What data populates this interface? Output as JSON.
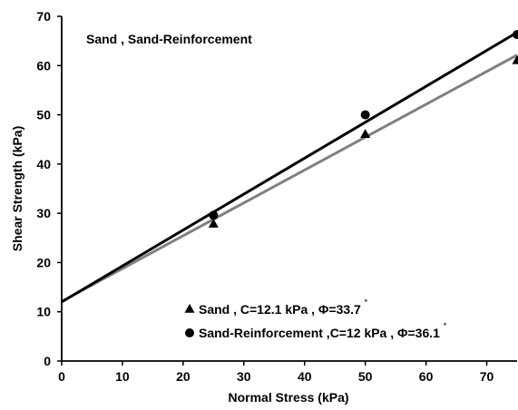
{
  "chart_data": {
    "type": "scatter",
    "title": "",
    "annotation": "Sand , Sand-Reinforcement",
    "xlabel": "Normal  Stress (kPa)",
    "ylabel": "Shear Strength (kPa)",
    "xlim": [
      0,
      75
    ],
    "ylim": [
      0,
      70
    ],
    "x_ticks": [
      0,
      10,
      20,
      30,
      40,
      50,
      60,
      70
    ],
    "y_ticks": [
      0,
      10,
      20,
      30,
      40,
      50,
      60,
      70
    ],
    "grid": false,
    "legend_position": "bottom-center",
    "series": [
      {
        "legend_label": "Sand , C=12.1 kPa , Φ=33.7",
        "degree_mark": "˚",
        "marker": "triangle",
        "marker_color": "#000000",
        "line_color": "#808080",
        "points": [
          {
            "x": 25,
            "y": 27.8
          },
          {
            "x": 50,
            "y": 46
          },
          {
            "x": 75,
            "y": 61
          }
        ],
        "fit_line": {
          "intercept": 12.1,
          "slope": 0.6671
        }
      },
      {
        "legend_label": "Sand-Reinforcement ,C=12 kPa , Φ=36.1",
        "degree_mark": "˚",
        "marker": "circle",
        "marker_color": "#000000",
        "line_color": "#000000",
        "points": [
          {
            "x": 25,
            "y": 29.6
          },
          {
            "x": 50,
            "y": 50
          },
          {
            "x": 75,
            "y": 66.3
          }
        ],
        "fit_line": {
          "intercept": 12,
          "slope": 0.7297
        }
      }
    ]
  }
}
